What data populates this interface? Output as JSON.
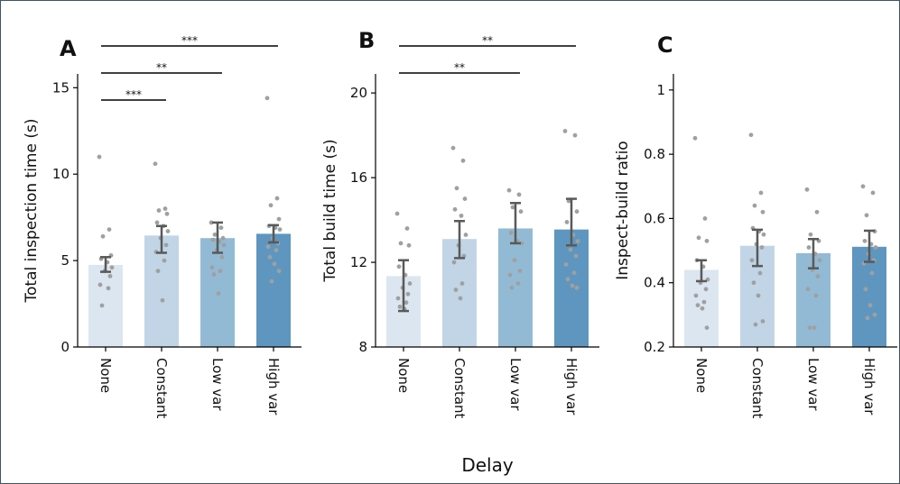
{
  "colors": {
    "bars": [
      "#dce6f0",
      "#c1d5e6",
      "#92bad4",
      "#5e96bf"
    ],
    "points": "#a0a0a0",
    "errorbars": "#595959"
  },
  "common_xlabel": "Delay",
  "chart_data": [
    {
      "panel": "A",
      "type": "bar",
      "categories": [
        "None",
        "Constant",
        "Low var",
        "High var"
      ],
      "values": [
        4.75,
        6.45,
        6.3,
        6.55
      ],
      "error_low": [
        4.35,
        5.45,
        5.45,
        6.05
      ],
      "error_high": [
        5.2,
        7.0,
        7.2,
        7.05
      ],
      "ylabel": "Total inspection time (s)",
      "ylim": [
        0,
        15.8
      ],
      "yticks": [
        0,
        5,
        10,
        15
      ],
      "points": [
        [
          11.0,
          6.8,
          6.4,
          5.3,
          5.1,
          4.9,
          4.6,
          4.4,
          4.1,
          3.6,
          3.4,
          2.4
        ],
        [
          10.6,
          8.0,
          7.9,
          7.7,
          7.2,
          7.0,
          6.7,
          6.3,
          5.9,
          5.5,
          5.0,
          4.4,
          2.7
        ],
        [
          7.2,
          6.9,
          6.5,
          6.3,
          6.2,
          6.1,
          5.9,
          5.6,
          5.2,
          4.6,
          4.4,
          4.2,
          3.1
        ],
        [
          14.4,
          8.6,
          8.2,
          7.4,
          7.0,
          6.9,
          6.8,
          6.3,
          6.0,
          5.8,
          5.6,
          5.2,
          4.8,
          4.4,
          3.8
        ]
      ],
      "significance": [
        {
          "from": 0,
          "to": 3,
          "label": "***"
        },
        {
          "from": 0,
          "to": 2,
          "label": "**"
        },
        {
          "from": 0,
          "to": 1,
          "label": "***"
        }
      ]
    },
    {
      "panel": "B",
      "type": "bar",
      "categories": [
        "None",
        "Constant",
        "Low var",
        "High var"
      ],
      "values": [
        11.35,
        13.1,
        13.6,
        13.55
      ],
      "error_low": [
        9.7,
        12.2,
        12.9,
        12.8
      ],
      "error_high": [
        12.1,
        13.95,
        14.8,
        15.0
      ],
      "ylabel": "Total build time (s)",
      "ylim": [
        8,
        20.9
      ],
      "yticks": [
        8,
        12,
        16,
        20
      ],
      "points": [
        [
          14.3,
          13.6,
          12.9,
          12.8,
          11.8,
          11.4,
          11.0,
          10.8,
          10.5,
          10.3,
          10.1,
          9.9,
          9.8
        ],
        [
          17.4,
          16.8,
          15.5,
          15.0,
          14.5,
          14.2,
          13.3,
          12.8,
          12.3,
          12.0,
          11.0,
          10.7,
          10.3
        ],
        [
          15.4,
          15.2,
          14.6,
          14.4,
          13.4,
          13.0,
          12.9,
          12.1,
          11.6,
          11.4,
          11.0,
          10.8
        ],
        [
          18.2,
          18.0,
          14.9,
          14.4,
          13.9,
          13.3,
          13.0,
          12.6,
          12.3,
          11.9,
          11.5,
          11.2,
          10.9,
          10.8
        ]
      ],
      "significance": [
        {
          "from": 0,
          "to": 3,
          "label": "**"
        },
        {
          "from": 0,
          "to": 2,
          "label": "**"
        }
      ]
    },
    {
      "panel": "C",
      "type": "bar",
      "categories": [
        "None",
        "Constant",
        "Low var",
        "High var"
      ],
      "values": [
        0.44,
        0.515,
        0.492,
        0.512
      ],
      "error_low": [
        0.405,
        0.452,
        0.445,
        0.465
      ],
      "error_high": [
        0.47,
        0.565,
        0.536,
        0.562
      ],
      "ylabel": "Inspect-build ratio",
      "ylim": [
        0.2,
        1.05
      ],
      "yticks": [
        0.2,
        0.4,
        0.6,
        0.8,
        1
      ],
      "ytick_labels": [
        "0.2",
        "0.4",
        "0.6",
        "0.8",
        "1"
      ],
      "points": [
        [
          0.85,
          0.6,
          0.54,
          0.53,
          0.47,
          0.45,
          0.41,
          0.4,
          0.38,
          0.36,
          0.34,
          0.33,
          0.32,
          0.26
        ],
        [
          0.86,
          0.68,
          0.64,
          0.62,
          0.57,
          0.56,
          0.55,
          0.52,
          0.51,
          0.47,
          0.43,
          0.4,
          0.36,
          0.28,
          0.27
        ],
        [
          0.69,
          0.62,
          0.55,
          0.53,
          0.51,
          0.49,
          0.47,
          0.44,
          0.42,
          0.38,
          0.36,
          0.26,
          0.26
        ],
        [
          0.7,
          0.68,
          0.61,
          0.56,
          0.53,
          0.52,
          0.51,
          0.49,
          0.47,
          0.46,
          0.43,
          0.38,
          0.33,
          0.3,
          0.29
        ]
      ],
      "significance": []
    }
  ]
}
